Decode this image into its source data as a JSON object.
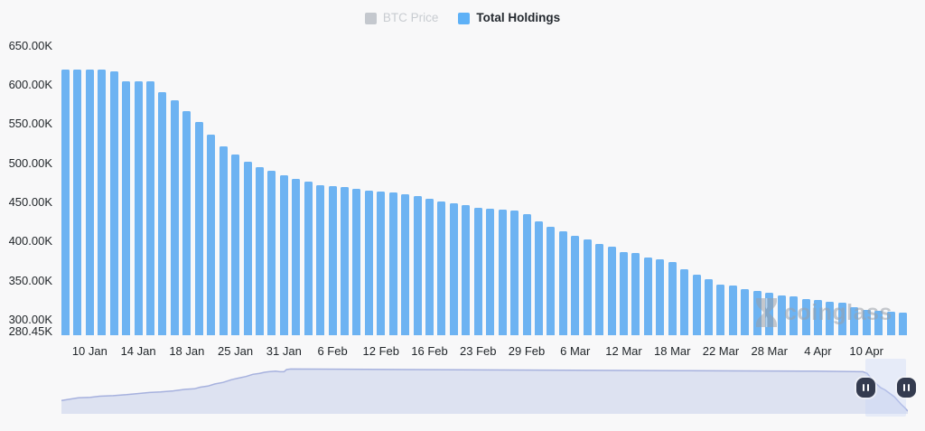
{
  "page": {
    "background": "#f8f8f9"
  },
  "legend": {
    "items": [
      {
        "label": "BTC Price",
        "swatch_color": "#c4c8ce",
        "text_color": "#c8ccd1",
        "disabled": true
      },
      {
        "label": "Total Holdings",
        "swatch_color": "#5eb1f7",
        "text_color": "#24292f",
        "disabled": false
      }
    ]
  },
  "watermark": {
    "text": "coinglass",
    "icon": "coinglass-hourglass-logo",
    "color": "#9aa0a8"
  },
  "chart_data": {
    "type": "bar",
    "title": "",
    "series_name": "Total Holdings",
    "unit": "K",
    "bar_color": "#6db3f2",
    "grid": false,
    "legend_position": "top",
    "ylim": [
      280.45,
      650
    ],
    "y_ticks": [
      {
        "label": "650.00K",
        "value": 650
      },
      {
        "label": "600.00K",
        "value": 600
      },
      {
        "label": "550.00K",
        "value": 550
      },
      {
        "label": "500.00K",
        "value": 500
      },
      {
        "label": "450.00K",
        "value": 450
      },
      {
        "label": "400.00K",
        "value": 400
      },
      {
        "label": "350.00K",
        "value": 350
      },
      {
        "label": "300.00K",
        "value": 300
      },
      {
        "label": "280.45K",
        "value": 280.45
      }
    ],
    "x_axis_labels": [
      {
        "index": 2,
        "label": "10 Jan"
      },
      {
        "index": 6,
        "label": "14 Jan"
      },
      {
        "index": 10,
        "label": "18 Jan"
      },
      {
        "index": 14,
        "label": "25 Jan"
      },
      {
        "index": 18,
        "label": "31 Jan"
      },
      {
        "index": 22,
        "label": "6 Feb"
      },
      {
        "index": 26,
        "label": "12 Feb"
      },
      {
        "index": 30,
        "label": "16 Feb"
      },
      {
        "index": 34,
        "label": "23 Feb"
      },
      {
        "index": 38,
        "label": "29 Feb"
      },
      {
        "index": 42,
        "label": "6 Mar"
      },
      {
        "index": 46,
        "label": "12 Mar"
      },
      {
        "index": 50,
        "label": "18 Mar"
      },
      {
        "index": 54,
        "label": "22 Mar"
      },
      {
        "index": 58,
        "label": "28 Mar"
      },
      {
        "index": 62,
        "label": "4 Apr"
      },
      {
        "index": 66,
        "label": "10 Apr"
      }
    ],
    "values_k": [
      619.4,
      619.4,
      619.4,
      619.4,
      617.0,
      605.0,
      605.0,
      605.0,
      591.4,
      581.0,
      566.3,
      553.3,
      536.8,
      521.3,
      511.7,
      502.1,
      495.5,
      490.6,
      484.8,
      480.2,
      476.3,
      472.5,
      470.5,
      469.4,
      467.5,
      465.6,
      463.6,
      462.4,
      460.9,
      458.6,
      454.8,
      451.4,
      449.4,
      447.1,
      443.6,
      442.5,
      441.3,
      439.3,
      435.5,
      425.9,
      418.5,
      412.7,
      407.8,
      402.8,
      397.4,
      393.1,
      386.7,
      385.5,
      380.1,
      377.8,
      374.0,
      364.7,
      357.8,
      352.0,
      345.4,
      344.3,
      339.3,
      336.6,
      334.7,
      331.6,
      330.1,
      326.2,
      325.0,
      323.2,
      322.3,
      316.2,
      312.3,
      311.6,
      310.8,
      309.6
    ]
  },
  "navigator": {
    "line_color": "#a6b1de",
    "fill_color": "#dde2f1",
    "band_color": "rgba(199,213,246,0.38)",
    "handle_color": "#343b4f",
    "handle_icon": "pause-icon",
    "selection": {
      "start": 0.95,
      "end": 0.998
    },
    "sparkline": [
      [
        0.0,
        0.75
      ],
      [
        0.02,
        0.7
      ],
      [
        0.034,
        0.69
      ],
      [
        0.045,
        0.67
      ],
      [
        0.061,
        0.66
      ],
      [
        0.077,
        0.64
      ],
      [
        0.09,
        0.62
      ],
      [
        0.104,
        0.6
      ],
      [
        0.117,
        0.59
      ],
      [
        0.132,
        0.57
      ],
      [
        0.146,
        0.54
      ],
      [
        0.157,
        0.53
      ],
      [
        0.164,
        0.5
      ],
      [
        0.173,
        0.48
      ],
      [
        0.181,
        0.44
      ],
      [
        0.191,
        0.41
      ],
      [
        0.201,
        0.36
      ],
      [
        0.209,
        0.33
      ],
      [
        0.218,
        0.3
      ],
      [
        0.226,
        0.26
      ],
      [
        0.234,
        0.24
      ],
      [
        0.24,
        0.22
      ],
      [
        0.245,
        0.21
      ],
      [
        0.253,
        0.2
      ],
      [
        0.258,
        0.21
      ],
      [
        0.263,
        0.21
      ],
      [
        0.266,
        0.17
      ],
      [
        0.271,
        0.16
      ],
      [
        0.41,
        0.17
      ],
      [
        0.57,
        0.18
      ],
      [
        0.73,
        0.19
      ],
      [
        0.89,
        0.2
      ],
      [
        0.947,
        0.21
      ],
      [
        0.952,
        0.24
      ],
      [
        0.957,
        0.34
      ],
      [
        0.963,
        0.44
      ],
      [
        0.968,
        0.51
      ],
      [
        0.973,
        0.55
      ],
      [
        0.979,
        0.62
      ],
      [
        0.984,
        0.68
      ],
      [
        0.988,
        0.75
      ],
      [
        0.992,
        0.82
      ],
      [
        0.996,
        0.88
      ],
      [
        1.0,
        0.95
      ]
    ]
  }
}
